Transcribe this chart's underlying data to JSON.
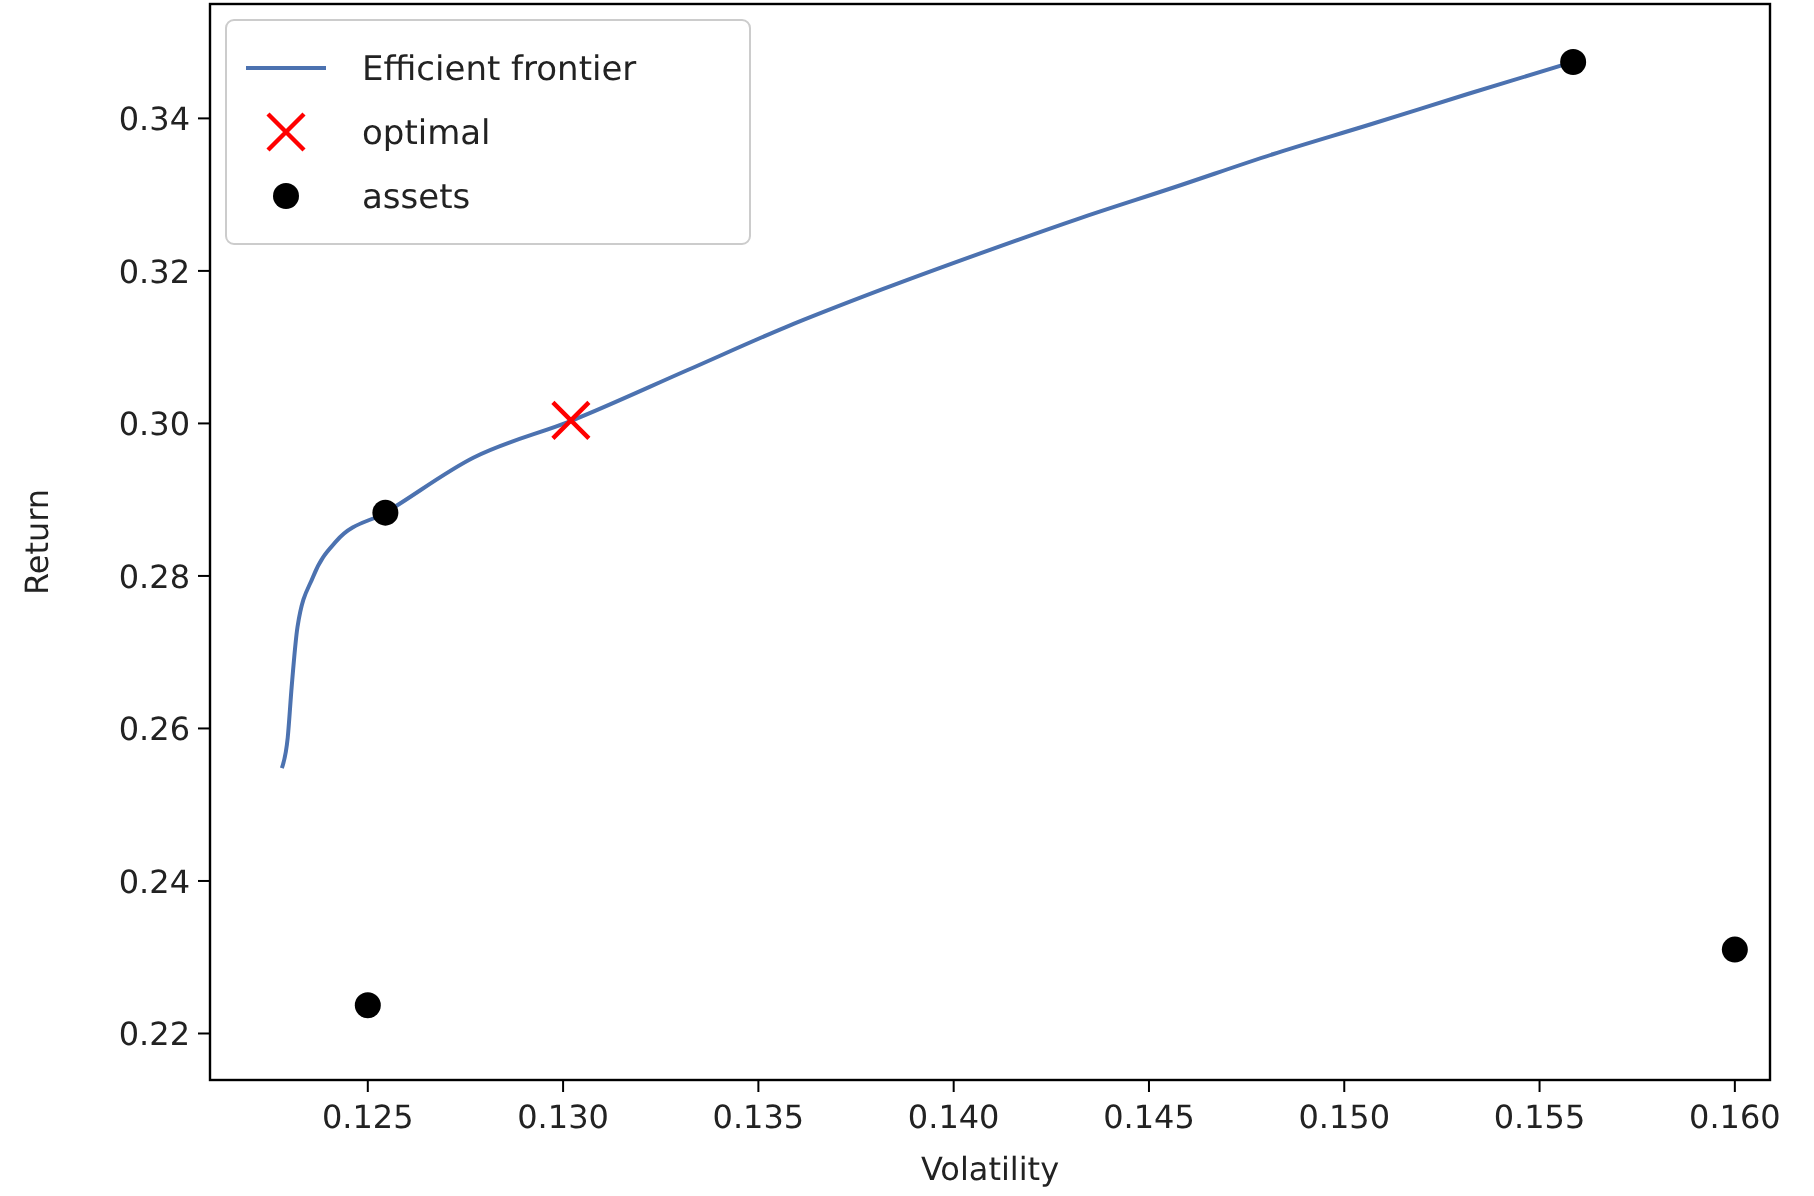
{
  "chart_data": {
    "type": "scatter",
    "xlabel": "Volatility",
    "ylabel": "Return",
    "xlim": [
      0.12096,
      0.1609
    ],
    "ylim": [
      0.2139,
      0.355
    ],
    "xticks": [
      {
        "value": 0.125,
        "label": "0.125"
      },
      {
        "value": 0.13,
        "label": "0.130"
      },
      {
        "value": 0.135,
        "label": "0.135"
      },
      {
        "value": 0.14,
        "label": "0.140"
      },
      {
        "value": 0.145,
        "label": "0.145"
      },
      {
        "value": 0.15,
        "label": "0.150"
      },
      {
        "value": 0.155,
        "label": "0.155"
      },
      {
        "value": 0.16,
        "label": "0.160"
      }
    ],
    "yticks": [
      {
        "value": 0.22,
        "label": "0.22"
      },
      {
        "value": 0.24,
        "label": "0.24"
      },
      {
        "value": 0.26,
        "label": "0.26"
      },
      {
        "value": 0.28,
        "label": "0.28"
      },
      {
        "value": 0.3,
        "label": "0.30"
      },
      {
        "value": 0.32,
        "label": "0.32"
      },
      {
        "value": 0.34,
        "label": "0.34"
      }
    ],
    "grid": false,
    "legend": "top left",
    "series": [
      {
        "name": "Efficient frontier",
        "type": "line",
        "color": "#4c72b0",
        "marker": "none",
        "line_style": "solid",
        "x": [
          0.1228,
          0.12295,
          0.12305,
          0.1232,
          0.1236,
          0.1242,
          0.12545,
          0.1277,
          0.13024,
          0.13319,
          0.13569,
          0.13818,
          0.14068,
          0.14317,
          0.14567,
          0.14817,
          0.15066,
          0.15316,
          0.15586
        ],
        "values": [
          0.2548,
          0.2588,
          0.2654,
          0.2733,
          0.2799,
          0.2846,
          0.2883,
          0.2955,
          0.3004,
          0.307,
          0.3126,
          0.3176,
          0.3223,
          0.3268,
          0.331,
          0.3353,
          0.3392,
          0.3432,
          0.3474
        ]
      },
      {
        "name": "optimal",
        "type": "scatter",
        "color": "#ff0000",
        "marker": "cross",
        "x": [
          0.1302
        ],
        "values": [
          0.3004
        ]
      },
      {
        "name": "assets",
        "type": "scatter",
        "color": "#000000",
        "marker": "circle",
        "x": [
          0.12545,
          0.15586,
          0.125,
          0.16
        ],
        "values": [
          0.2883,
          0.3474,
          0.2237,
          0.231
        ]
      }
    ]
  }
}
